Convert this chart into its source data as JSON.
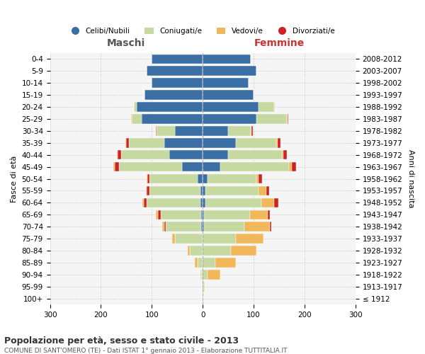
{
  "age_groups": [
    "100+",
    "95-99",
    "90-94",
    "85-89",
    "80-84",
    "75-79",
    "70-74",
    "65-69",
    "60-64",
    "55-59",
    "50-54",
    "45-49",
    "40-44",
    "35-39",
    "30-34",
    "25-29",
    "20-24",
    "15-19",
    "10-14",
    "5-9",
    "0-4"
  ],
  "birth_years": [
    "≤ 1912",
    "1913-1917",
    "1918-1922",
    "1923-1927",
    "1928-1932",
    "1933-1937",
    "1938-1942",
    "1943-1947",
    "1948-1952",
    "1953-1957",
    "1958-1962",
    "1963-1967",
    "1968-1972",
    "1973-1977",
    "1978-1982",
    "1983-1987",
    "1988-1992",
    "1993-1997",
    "1998-2002",
    "2003-2007",
    "2008-2012"
  ],
  "males_celibi": [
    0,
    0,
    0,
    0,
    0,
    0,
    3,
    3,
    5,
    5,
    10,
    40,
    65,
    75,
    55,
    120,
    130,
    115,
    100,
    110,
    100
  ],
  "males_coniugati": [
    1,
    2,
    3,
    10,
    25,
    55,
    70,
    80,
    105,
    100,
    95,
    125,
    95,
    70,
    35,
    20,
    5,
    0,
    0,
    0,
    0
  ],
  "males_vedovi": [
    0,
    0,
    2,
    5,
    5,
    5,
    4,
    4,
    3,
    2,
    1,
    3,
    2,
    1,
    0,
    1,
    0,
    0,
    0,
    0,
    0
  ],
  "males_divorziati": [
    0,
    0,
    0,
    0,
    0,
    0,
    3,
    5,
    6,
    5,
    4,
    8,
    7,
    6,
    2,
    0,
    0,
    0,
    0,
    0,
    0
  ],
  "females_celibi": [
    0,
    0,
    0,
    0,
    0,
    0,
    2,
    3,
    5,
    5,
    10,
    35,
    50,
    65,
    50,
    105,
    110,
    100,
    90,
    105,
    95
  ],
  "females_coniugati": [
    1,
    2,
    10,
    25,
    55,
    65,
    80,
    90,
    110,
    105,
    95,
    135,
    105,
    80,
    45,
    60,
    30,
    0,
    0,
    0,
    0
  ],
  "females_vedovi": [
    0,
    2,
    25,
    40,
    50,
    55,
    50,
    35,
    25,
    15,
    5,
    5,
    3,
    2,
    1,
    2,
    1,
    0,
    0,
    0,
    0
  ],
  "females_divorziati": [
    0,
    0,
    0,
    0,
    0,
    0,
    3,
    4,
    8,
    5,
    7,
    8,
    7,
    6,
    2,
    1,
    0,
    0,
    0,
    0,
    0
  ],
  "color_celibi": "#3b6ea5",
  "color_coniugati": "#c5d9a0",
  "color_vedovi": "#f0b85a",
  "color_divorziati": "#cc2222",
  "title_main": "Popolazione per età, sesso e stato civile - 2013",
  "title_sub": "COMUNE DI SANT'OMERO (TE) - Dati ISTAT 1° gennaio 2013 - Elaborazione TUTTITALIA.IT",
  "xlabel_left": "Maschi",
  "xlabel_right": "Femmine",
  "ylabel_left": "Fasce di età",
  "ylabel_right": "Anni di nascita",
  "xlim": 300,
  "background_color": "#f5f5f5",
  "grid_color": "#cccccc"
}
